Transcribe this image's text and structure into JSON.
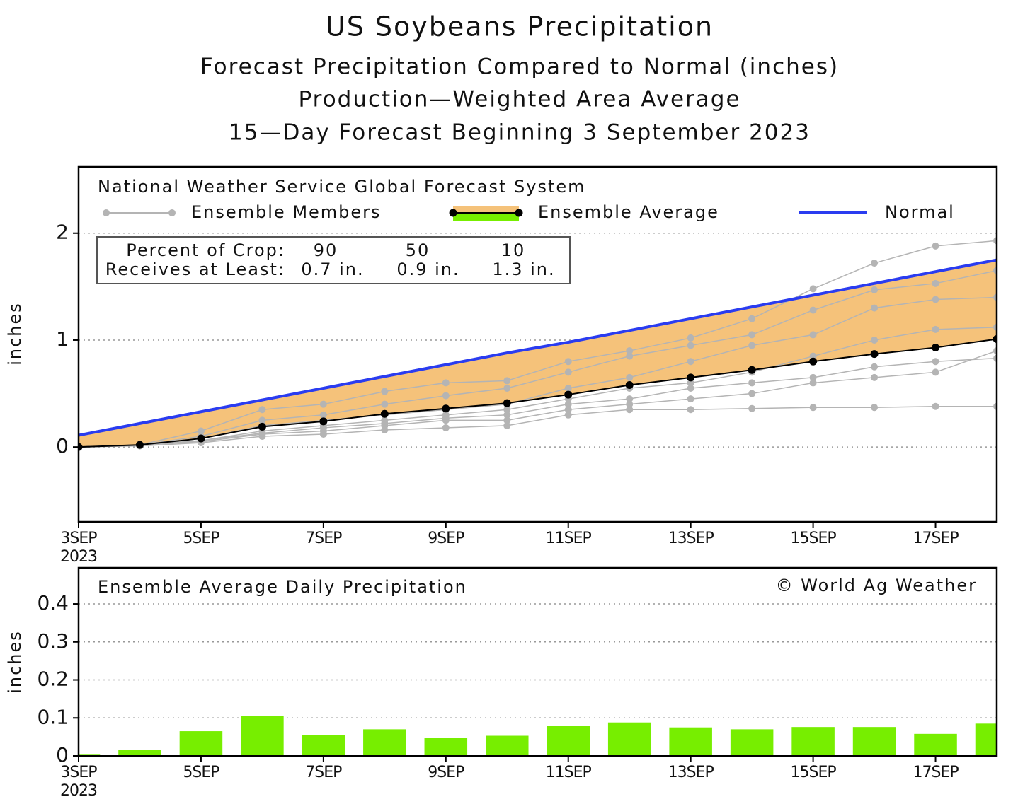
{
  "chart_data": [
    {
      "type": "line",
      "title": "US Soybeans Precipitation",
      "subtitles": [
        "Forecast Precipitation Compared to Normal (inches)",
        "Production—Weighted Area Average",
        "15—Day Forecast Beginning 3 September 2023"
      ],
      "source_title": "National Weather Service Global Forecast System",
      "ylabel": "inches",
      "x": [
        "2023-09-03",
        "2023-09-04",
        "2023-09-05",
        "2023-09-06",
        "2023-09-07",
        "2023-09-08",
        "2023-09-09",
        "2023-09-10",
        "2023-09-11",
        "2023-09-12",
        "2023-09-13",
        "2023-09-14",
        "2023-09-15",
        "2023-09-16",
        "2023-09-17",
        "2023-09-18"
      ],
      "xlim": [
        "2023-09-03",
        "2023-09-18"
      ],
      "xticks": [
        {
          "value": "2023-09-03",
          "label": "3SEP"
        },
        {
          "value": "2023-09-05",
          "label": "5SEP"
        },
        {
          "value": "2023-09-07",
          "label": "7SEP"
        },
        {
          "value": "2023-09-09",
          "label": "9SEP"
        },
        {
          "value": "2023-09-11",
          "label": "11SEP"
        },
        {
          "value": "2023-09-13",
          "label": "13SEP"
        },
        {
          "value": "2023-09-15",
          "label": "15SEP"
        },
        {
          "value": "2023-09-17",
          "label": "17SEP"
        }
      ],
      "x_year_label": "2023",
      "ylim": [
        -0.7,
        2.62
      ],
      "yticks": [
        0,
        1,
        2
      ],
      "grid": true,
      "members": {
        "name": "Ensemble Members",
        "color": "#b4b4b4",
        "series": [
          [
            0,
            0.02,
            0.15,
            0.35,
            0.4,
            0.52,
            0.6,
            0.62,
            0.8,
            0.9,
            1.02,
            1.2,
            1.48,
            1.72,
            1.88,
            1.93
          ],
          [
            0,
            0.02,
            0.1,
            0.25,
            0.3,
            0.4,
            0.48,
            0.55,
            0.7,
            0.85,
            0.95,
            1.05,
            1.28,
            1.47,
            1.53,
            1.65
          ],
          [
            0,
            0.02,
            0.08,
            0.2,
            0.25,
            0.3,
            0.35,
            0.4,
            0.55,
            0.65,
            0.8,
            0.95,
            1.05,
            1.3,
            1.38,
            1.4
          ],
          [
            0,
            0.02,
            0.06,
            0.15,
            0.2,
            0.25,
            0.3,
            0.35,
            0.45,
            0.55,
            0.6,
            0.7,
            0.85,
            1.0,
            1.1,
            1.12
          ],
          [
            0,
            0.02,
            0.06,
            0.13,
            0.18,
            0.22,
            0.27,
            0.3,
            0.4,
            0.45,
            0.55,
            0.6,
            0.65,
            0.75,
            0.8,
            0.83
          ],
          [
            0,
            0.02,
            0.05,
            0.12,
            0.15,
            0.2,
            0.25,
            0.25,
            0.35,
            0.4,
            0.45,
            0.5,
            0.6,
            0.65,
            0.7,
            0.9
          ],
          [
            0,
            0.01,
            0.04,
            0.1,
            0.12,
            0.16,
            0.18,
            0.2,
            0.3,
            0.35,
            0.35,
            0.36,
            0.37,
            0.37,
            0.38,
            0.38
          ]
        ]
      },
      "series": [
        {
          "name": "Ensemble Average",
          "color": "#000000",
          "fill": "#f5c27a",
          "values": [
            0,
            0.02,
            0.08,
            0.19,
            0.24,
            0.31,
            0.36,
            0.41,
            0.49,
            0.58,
            0.65,
            0.72,
            0.8,
            0.87,
            0.93,
            1.01
          ]
        },
        {
          "name": "Normal",
          "color": "#2a3cf0",
          "values": [
            0.11,
            0.22,
            0.33,
            0.44,
            0.55,
            0.66,
            0.77,
            0.88,
            0.98,
            1.09,
            1.2,
            1.31,
            1.42,
            1.53,
            1.64,
            1.75
          ]
        }
      ],
      "crop_table": {
        "row_labels": [
          "Percent of Crop:",
          "Receives at Least:"
        ],
        "percent": [
          90,
          50,
          10
        ],
        "amounts": [
          0.7,
          0.9,
          1.3
        ],
        "amount_labels": [
          "0.7 in.",
          "0.9 in.",
          "1.3 in."
        ]
      }
    },
    {
      "type": "bar",
      "title": "Ensemble Average Daily Precipitation",
      "credit": "© World Ag Weather",
      "ylabel": "inches",
      "x": [
        "2023-09-03",
        "2023-09-04",
        "2023-09-05",
        "2023-09-06",
        "2023-09-07",
        "2023-09-08",
        "2023-09-09",
        "2023-09-10",
        "2023-09-11",
        "2023-09-12",
        "2023-09-13",
        "2023-09-14",
        "2023-09-15",
        "2023-09-16",
        "2023-09-17",
        "2023-09-18"
      ],
      "xlim": [
        "2023-09-03",
        "2023-09-18"
      ],
      "xticks": [
        {
          "value": "2023-09-03",
          "label": "3SEP"
        },
        {
          "value": "2023-09-05",
          "label": "5SEP"
        },
        {
          "value": "2023-09-07",
          "label": "7SEP"
        },
        {
          "value": "2023-09-09",
          "label": "9SEP"
        },
        {
          "value": "2023-09-11",
          "label": "11SEP"
        },
        {
          "value": "2023-09-13",
          "label": "13SEP"
        },
        {
          "value": "2023-09-15",
          "label": "15SEP"
        },
        {
          "value": "2023-09-17",
          "label": "17SEP"
        }
      ],
      "x_year_label": "2023",
      "ylim": [
        0,
        0.495
      ],
      "yticks": [
        0,
        0.1,
        0.2,
        0.3,
        0.4
      ],
      "grid": true,
      "color": "#77ee00",
      "values": [
        0.005,
        0.015,
        0.065,
        0.105,
        0.055,
        0.07,
        0.048,
        0.053,
        0.08,
        0.088,
        0.075,
        0.07,
        0.076,
        0.076,
        0.058,
        0.085
      ]
    }
  ]
}
